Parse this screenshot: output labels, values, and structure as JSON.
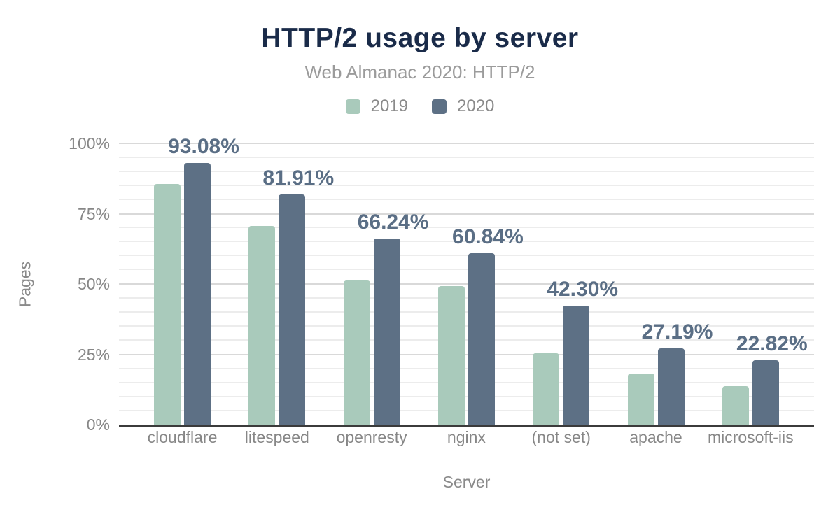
{
  "chart_data": {
    "type": "bar",
    "title": "HTTP/2 usage by server",
    "subtitle": "Web Almanac 2020: HTTP/2",
    "xlabel": "Server",
    "ylabel": "Pages",
    "categories": [
      "cloudflare",
      "litespeed",
      "openresty",
      "nginx",
      "(not set)",
      "apache",
      "microsoft-iis"
    ],
    "series": [
      {
        "name": "2019",
        "color": "#a9cabb",
        "values": [
          85.6,
          70.6,
          51.2,
          49.3,
          25.4,
          18.1,
          13.6
        ]
      },
      {
        "name": "2020",
        "color": "#5d7085",
        "values": [
          93.08,
          81.91,
          66.24,
          60.84,
          42.3,
          27.19,
          22.82
        ],
        "value_labels": [
          "93.08%",
          "81.91%",
          "66.24%",
          "60.84%",
          "42.30%",
          "27.19%",
          "22.82%"
        ]
      }
    ],
    "ylim": [
      0,
      100
    ],
    "y_tick_labels": [
      "0%",
      "25%",
      "50%",
      "75%",
      "100%"
    ],
    "y_tick_values": [
      0,
      25,
      50,
      75,
      100
    ],
    "grid": {
      "minor_step": 5,
      "major_step": 25,
      "orientation": "horizontal"
    },
    "legend_position": "top-center"
  },
  "colors": {
    "title": "#1a2b49",
    "subtitle": "#9b9b9b",
    "axis_text": "#878787",
    "value_label": "#5a6e85",
    "series_2019": "#a9cabb",
    "series_2020": "#5d7085",
    "gridline_minor": "#ececec",
    "gridline_major": "#d9d9d9",
    "axis_line": "#3b3b3b",
    "background": "#ffffff"
  }
}
